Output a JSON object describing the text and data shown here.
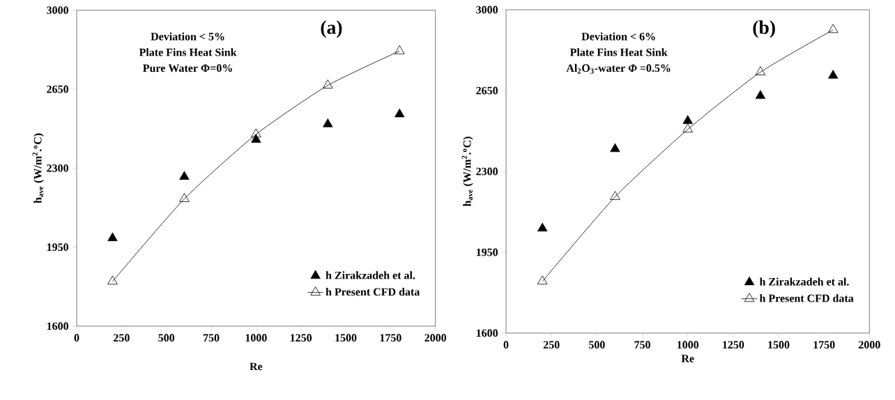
{
  "chart_data": [
    {
      "type": "scatter",
      "xlabel": "Re",
      "ylabel": "h$_{ave}$ (W/m$^{2}$.$^{o}$C)",
      "annotations": [
        "(a)",
        "Deviation < 5%",
        "Plate Fins Heat Sink",
        "Pure Water Φ=0%"
      ],
      "xlim": [
        0,
        2000
      ],
      "ylim": [
        1600,
        3000
      ],
      "xticks": [
        0,
        250,
        500,
        750,
        1000,
        1250,
        1500,
        1750,
        2000
      ],
      "yticks": [
        1600,
        1950,
        2300,
        2650,
        3000
      ],
      "x": [
        200,
        600,
        1000,
        1400,
        1800
      ],
      "marker": "triangle",
      "legend": "bottom right",
      "series": [
        {
          "name": "h Zirakzadeh et al.",
          "color": "#000000",
          "values": [
            1990,
            2262,
            2426,
            2495,
            2539
          ]
        },
        {
          "name": "h Present CFD data",
          "type": "line",
          "color": "#000000",
          "values": [
            1798,
            2164,
            2450,
            2667,
            2819
          ]
        }
      ]
    },
    {
      "type": "scatter",
      "xlabel": "Re",
      "ylabel": "h$_{ave}$ (W/m$^{2}$.$^{o}$C)",
      "annotations": [
        "(b)",
        "Deviation < 6%",
        "Plate Fins Heat Sink",
        "Al$_{2}$O$_{3}$-water *Φ* =0.5%"
      ],
      "xlim": [
        0,
        2000
      ],
      "ylim": [
        1600,
        3000
      ],
      "xticks": [
        0,
        250,
        500,
        750,
        1000,
        1250,
        1500,
        1750,
        2000
      ],
      "yticks": [
        1600,
        1950,
        2300,
        2650,
        3000
      ],
      "x": [
        200,
        600,
        1000,
        1400,
        1800
      ],
      "marker": "triangle",
      "legend": "bottom right",
      "series": [
        {
          "name": "h Zirakzadeh et al.",
          "color": "#000000",
          "values": [
            2053,
            2397,
            2519,
            2627,
            2715
          ]
        },
        {
          "name": "h Present CFD data",
          "type": "line",
          "color": "#000000",
          "values": [
            1824,
            2190,
            2482,
            2730,
            2913
          ]
        }
      ]
    }
  ]
}
